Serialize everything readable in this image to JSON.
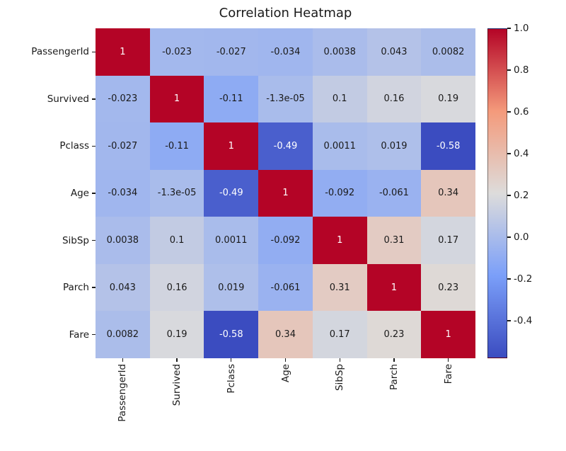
{
  "figure": {
    "background": "#ffffff"
  },
  "chart_data": {
    "type": "heatmap",
    "title": "Correlation Heatmap",
    "categories": [
      "PassengerId",
      "Survived",
      "Pclass",
      "Age",
      "SibSp",
      "Parch",
      "Fare"
    ],
    "values": [
      [
        1,
        -0.023,
        -0.027,
        -0.034,
        0.0038,
        0.043,
        0.0082
      ],
      [
        -0.023,
        1,
        -0.11,
        -1.3e-05,
        0.1,
        0.16,
        0.19
      ],
      [
        -0.027,
        -0.11,
        1,
        -0.49,
        0.0011,
        0.019,
        -0.58
      ],
      [
        -0.034,
        -1.3e-05,
        -0.49,
        1,
        -0.092,
        -0.061,
        0.34
      ],
      [
        0.0038,
        0.1,
        0.0011,
        -0.092,
        1,
        0.31,
        0.17
      ],
      [
        0.043,
        0.16,
        0.019,
        -0.061,
        0.31,
        1,
        0.23
      ],
      [
        0.0082,
        0.19,
        -0.58,
        0.34,
        0.17,
        0.23,
        1
      ]
    ],
    "cell_labels": [
      [
        "1",
        "-0.023",
        "-0.027",
        "-0.034",
        "0.0038",
        "0.043",
        "0.0082"
      ],
      [
        "-0.023",
        "1",
        "-0.11",
        "-1.3e-05",
        "0.1",
        "0.16",
        "0.19"
      ],
      [
        "-0.027",
        "-0.11",
        "1",
        "-0.49",
        "0.0011",
        "0.019",
        "-0.58"
      ],
      [
        "-0.034",
        "-1.3e-05",
        "-0.49",
        "1",
        "-0.092",
        "-0.061",
        "0.34"
      ],
      [
        "0.0038",
        "0.1",
        "0.0011",
        "-0.092",
        "1",
        "0.31",
        "0.17"
      ],
      [
        "0.043",
        "0.16",
        "0.019",
        "-0.061",
        "0.31",
        "1",
        "0.23"
      ],
      [
        "0.0082",
        "0.19",
        "-0.58",
        "0.34",
        "0.17",
        "0.23",
        "1"
      ]
    ],
    "vmin": -0.58,
    "vmax": 1.0,
    "colormap": "coolwarm",
    "colormap_anchors": [
      {
        "t": 0.0,
        "color": "#3b4cc0"
      },
      {
        "t": 0.25,
        "color": "#7b9ff9"
      },
      {
        "t": 0.5,
        "color": "#dddcdb"
      },
      {
        "t": 0.75,
        "color": "#f49a7b"
      },
      {
        "t": 1.0,
        "color": "#b40426"
      }
    ],
    "colorbar_ticks": [
      "1.0",
      "0.8",
      "0.6",
      "0.4",
      "0.2",
      "0.0",
      "-0.2",
      "-0.4"
    ],
    "colorbar_tick_values": [
      1.0,
      0.8,
      0.6,
      0.4,
      0.2,
      0.0,
      -0.2,
      -0.4
    ],
    "annotation_text_colors": {
      "dark": "#1a1a1a",
      "light": "#ffffff"
    },
    "legend_position": "right-colorbar",
    "grid": false
  }
}
